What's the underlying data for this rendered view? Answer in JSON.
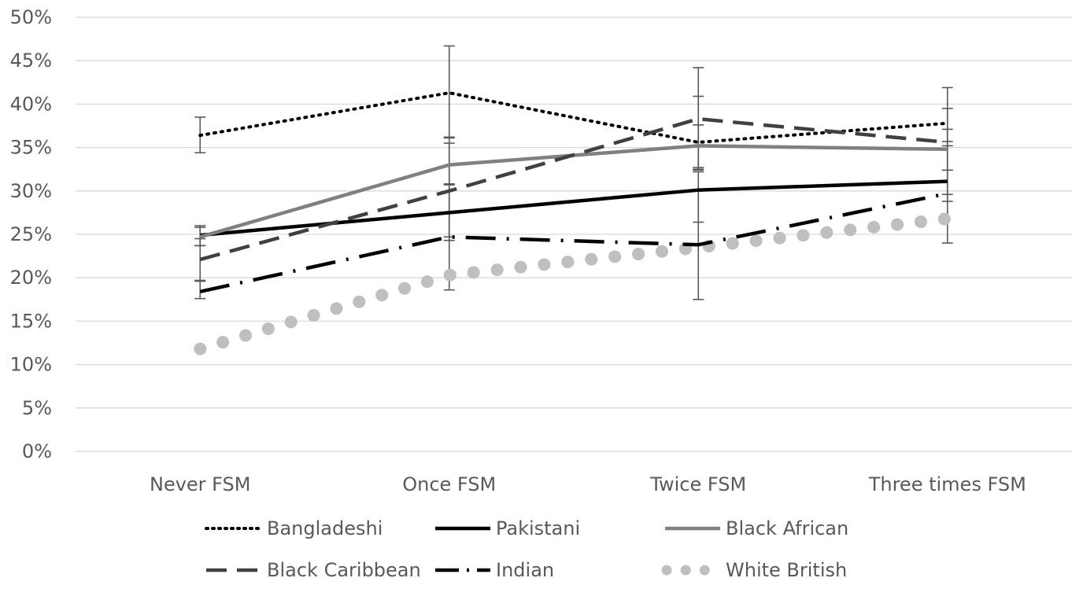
{
  "chart_data": {
    "type": "line",
    "categories": [
      "Never FSM",
      "Once FSM",
      "Twice FSM",
      "Three times FSM"
    ],
    "ylim": [
      0,
      0.5
    ],
    "y_ticks": [
      0,
      0.05,
      0.1,
      0.15,
      0.2,
      0.25,
      0.3,
      0.35,
      0.4,
      0.45,
      0.5
    ],
    "y_tick_labels": [
      "0%",
      "5%",
      "10%",
      "15%",
      "20%",
      "25%",
      "30%",
      "35%",
      "40%",
      "45%",
      "50%"
    ],
    "grid": true,
    "legend_position": "bottom",
    "series": [
      {
        "name": "Bangladeshi",
        "color": "#000000",
        "dash": "dot",
        "values": [
          0.364,
          0.413,
          0.356,
          0.378
        ],
        "error_low": [
          0.344,
          0.362,
          0.324,
          0.357
        ],
        "error_high": [
          0.385,
          0.467,
          0.409,
          0.395
        ],
        "error_bars": true
      },
      {
        "name": "Pakistani",
        "color": "#000000",
        "dash": "solid",
        "values": [
          0.249,
          0.275,
          0.301,
          0.311
        ],
        "error_low": [
          0.237,
          0.247,
          0.264,
          0.288
        ],
        "error_high": [
          0.26,
          0.308,
          0.322,
          0.324
        ],
        "error_bars": true
      },
      {
        "name": "Black African",
        "color": "#808080",
        "dash": "solid",
        "values": [
          0.247,
          0.33,
          0.352,
          0.348
        ],
        "error_low": [
          0.237,
          0.307,
          0.327,
          0.324
        ],
        "error_high": [
          0.258,
          0.355,
          0.376,
          0.371
        ],
        "error_bars": true
      },
      {
        "name": "Black Caribbean",
        "color": "#404040",
        "dash": "dash",
        "values": [
          0.221,
          0.3,
          0.383,
          0.356
        ],
        "error_low": [
          0.197,
          0.243,
          0.325,
          0.296
        ],
        "error_high": [
          0.245,
          0.361,
          0.442,
          0.419
        ],
        "error_bars": true
      },
      {
        "name": "Indian",
        "color": "#000000",
        "dash": "dashdot",
        "values": [
          0.184,
          0.247,
          0.238,
          0.297
        ],
        "error_low": [
          0.176,
          0.186,
          0.175,
          0.24
        ],
        "error_high": [
          0.196,
          0.308,
          0.3,
          0.352
        ],
        "error_bars": true
      },
      {
        "name": "White British",
        "color": "#bfbfbf",
        "dash": "roundDot",
        "values": [
          0.118,
          0.203,
          0.235,
          0.268
        ],
        "error_bars": false
      }
    ]
  }
}
